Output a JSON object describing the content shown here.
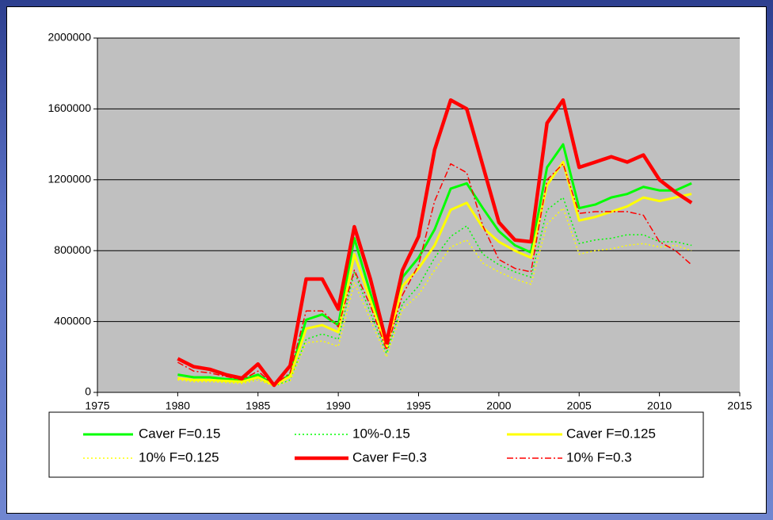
{
  "chart_data": {
    "type": "line",
    "x": [
      1980,
      1981,
      1982,
      1983,
      1984,
      1985,
      1986,
      1987,
      1988,
      1989,
      1990,
      1991,
      1992,
      1993,
      1994,
      1995,
      1996,
      1997,
      1998,
      1999,
      2000,
      2001,
      2002,
      2003,
      2004,
      2005,
      2006,
      2007,
      2008,
      2009,
      2010,
      2011,
      2012
    ],
    "series": [
      {
        "name": "Caver F=0.15",
        "color": "#00ff00",
        "dash": "solid",
        "line_width": 3,
        "values": [
          100000,
          85000,
          85000,
          75000,
          70000,
          100000,
          40000,
          100000,
          410000,
          440000,
          380000,
          870000,
          560000,
          270000,
          650000,
          760000,
          920000,
          1150000,
          1180000,
          1040000,
          910000,
          830000,
          790000,
          1270000,
          1400000,
          1040000,
          1060000,
          1100000,
          1120000,
          1160000,
          1140000,
          1140000,
          1180000
        ]
      },
      {
        "name": "10%-0.15",
        "color": "#00ff00",
        "dash": "dotted",
        "line_width": 1.5,
        "values": [
          80000,
          70000,
          70000,
          60000,
          55000,
          80000,
          35000,
          70000,
          300000,
          330000,
          300000,
          680000,
          450000,
          220000,
          500000,
          600000,
          760000,
          880000,
          940000,
          780000,
          720000,
          680000,
          650000,
          1030000,
          1100000,
          840000,
          860000,
          870000,
          890000,
          890000,
          850000,
          850000,
          830000
        ]
      },
      {
        "name": "Caver F=0.125",
        "color": "#ffff00",
        "dash": "solid",
        "line_width": 3,
        "values": [
          80000,
          70000,
          70000,
          65000,
          60000,
          85000,
          40000,
          90000,
          360000,
          380000,
          340000,
          780000,
          520000,
          250000,
          600000,
          700000,
          830000,
          1030000,
          1070000,
          930000,
          850000,
          800000,
          760000,
          1170000,
          1300000,
          970000,
          990000,
          1020000,
          1050000,
          1100000,
          1080000,
          1100000,
          1120000
        ]
      },
      {
        "name": "10% F=0.125",
        "color": "#ffff00",
        "dash": "dotted",
        "line_width": 1.5,
        "values": [
          70000,
          60000,
          60000,
          55000,
          50000,
          70000,
          35000,
          65000,
          280000,
          290000,
          260000,
          620000,
          410000,
          200000,
          470000,
          550000,
          690000,
          820000,
          860000,
          730000,
          680000,
          640000,
          610000,
          950000,
          1040000,
          780000,
          800000,
          810000,
          830000,
          840000,
          820000,
          830000,
          800000
        ]
      },
      {
        "name": "Caver F=0.3",
        "color": "#ff0000",
        "dash": "solid",
        "line_width": 4.5,
        "values": [
          190000,
          145000,
          130000,
          100000,
          80000,
          160000,
          40000,
          150000,
          640000,
          640000,
          470000,
          935000,
          640000,
          280000,
          690000,
          880000,
          1370000,
          1650000,
          1600000,
          1280000,
          960000,
          860000,
          850000,
          1520000,
          1650000,
          1270000,
          1300000,
          1330000,
          1300000,
          1340000,
          1200000,
          1130000,
          1070000
        ]
      },
      {
        "name": "10% F=0.3",
        "color": "#ff0000",
        "dash": "dashdot",
        "line_width": 1.5,
        "values": [
          170000,
          120000,
          110000,
          90000,
          70000,
          120000,
          40000,
          110000,
          460000,
          460000,
          370000,
          690000,
          490000,
          240000,
          550000,
          720000,
          1080000,
          1290000,
          1240000,
          940000,
          750000,
          700000,
          680000,
          1200000,
          1290000,
          1010000,
          1020000,
          1020000,
          1020000,
          1000000,
          850000,
          800000,
          720000
        ]
      }
    ],
    "xlim": [
      1975,
      2015
    ],
    "xticks": [
      1975,
      1980,
      1985,
      1990,
      1995,
      2000,
      2005,
      2010,
      2015
    ],
    "ylim": [
      0,
      2000000
    ],
    "yticks": [
      0,
      400000,
      800000,
      1200000,
      1600000,
      2000000
    ],
    "grid": true,
    "plot_background": "#c0c0c0",
    "legend": "bottom"
  }
}
